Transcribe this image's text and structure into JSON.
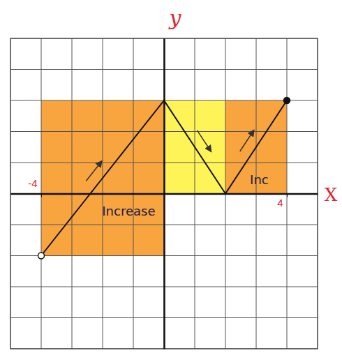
{
  "chart_data": {
    "type": "line",
    "x_label": "X",
    "y_label": "y",
    "x": [
      -4,
      0,
      2,
      4
    ],
    "values": [
      -2,
      3,
      0,
      3
    ],
    "color": "#111111",
    "marker": "circle",
    "xlim": [
      -5,
      5
    ],
    "ylim": [
      -5,
      5
    ],
    "xticks": [
      -4,
      4
    ],
    "yticks": [],
    "tick_labels": "x",
    "grid": true,
    "regions": [
      {
        "x": [
          -4,
          0
        ],
        "y": [
          -2,
          3
        ],
        "color": "#f7941d"
      },
      {
        "x": [
          0,
          2
        ],
        "y": [
          0,
          3
        ],
        "color": "#fff23a"
      },
      {
        "x": [
          2,
          4
        ],
        "y": [
          0,
          3
        ],
        "color": "#f7941d"
      }
    ],
    "annotations": [
      {
        "text": "Increase",
        "x": -1.15,
        "y": -0.7
      },
      {
        "text": "Inc",
        "x": 3.1,
        "y": 0.3
      }
    ]
  }
}
